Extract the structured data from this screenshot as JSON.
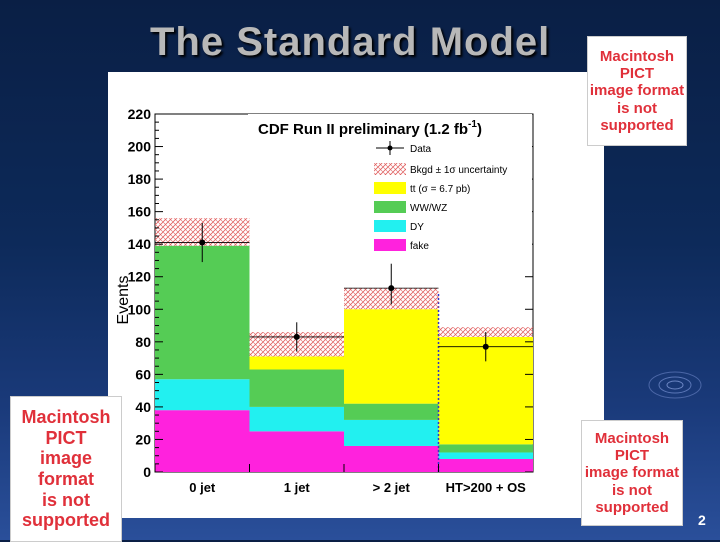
{
  "slide": {
    "title": "The Standard Model",
    "page_number": "2"
  },
  "pict_notice": {
    "line1": "Macintosh PICT",
    "line2": "image format",
    "line3": "is not supported"
  },
  "colors": {
    "ttbar": "#ffff00",
    "wwwz": "#55cc55",
    "dy": "#22f0f0",
    "fake": "#ff22dd",
    "uncertainty": "#e06060",
    "data": "#000000",
    "ht_line": "#3333cc"
  },
  "chart_data": {
    "type": "bar",
    "stacked": true,
    "title": "CDF Run II preliminary (1.2 fb",
    "title_superscript": "-1",
    "title_suffix": ")",
    "ylabel": "Events",
    "xlabel": "",
    "ylim": [
      0,
      220
    ],
    "yticks": [
      0,
      20,
      40,
      60,
      80,
      100,
      120,
      140,
      160,
      180,
      200,
      220
    ],
    "categories": [
      "0 jet",
      "1 jet",
      "> 2 jet",
      "HT>200 + OS"
    ],
    "series": [
      {
        "name": "fake",
        "color_key": "fake",
        "values": [
          38,
          25,
          16,
          8
        ]
      },
      {
        "name": "DY",
        "color_key": "dy",
        "values": [
          19,
          15,
          16,
          4
        ]
      },
      {
        "name": "WW/WZ",
        "color_key": "wwwz",
        "values": [
          82,
          23,
          10,
          5
        ]
      },
      {
        "name": "tt (σ = 6.7 pb)",
        "color_key": "ttbar",
        "values": [
          0,
          8,
          58,
          66
        ]
      }
    ],
    "uncertainty_band": {
      "label": "Bkgd ± 1σ uncertainty",
      "low": [
        139,
        71,
        100,
        83
      ],
      "high": [
        156,
        86,
        113,
        89
      ]
    },
    "data_points": {
      "label": "Data",
      "values": [
        141,
        83,
        113,
        77
      ],
      "err_low": [
        12,
        9,
        10,
        9
      ],
      "err_high": [
        12,
        9,
        15,
        9
      ]
    },
    "legend_labels": {
      "data": "Data",
      "band": "Bkgd ± 1σ uncertainty",
      "tt": "tt (σ = 6.7 pb)",
      "wwwz": "WW/WZ",
      "dy": "DY",
      "fake": "fake"
    },
    "legend_position": "top-right"
  }
}
